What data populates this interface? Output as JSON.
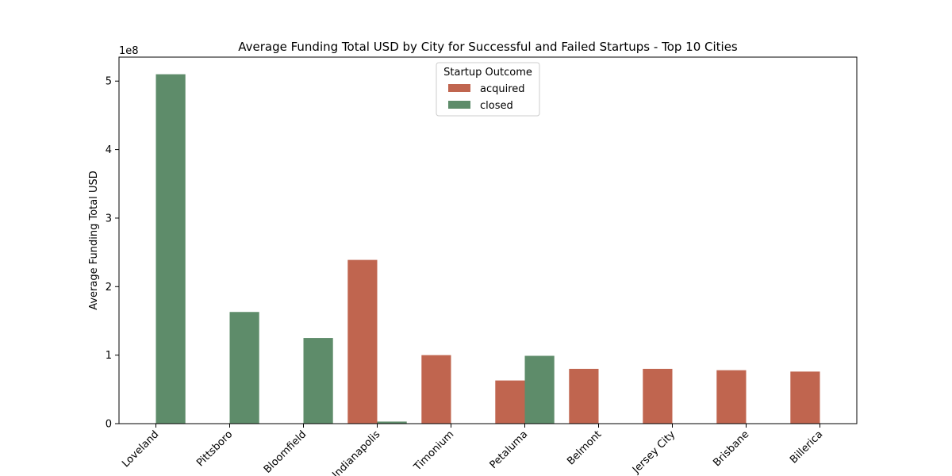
{
  "chart_data": {
    "type": "bar",
    "title": "Average Funding Total USD by City for Successful and Failed Startups - Top 10 Cities",
    "xlabel": "",
    "ylabel": "Average Funding Total USD",
    "y_offset_label": "1e8",
    "y_scale": 100000000,
    "ylim": [
      0,
      535000000
    ],
    "y_ticks": [
      0,
      100000000,
      200000000,
      300000000,
      400000000,
      500000000
    ],
    "y_tick_labels": [
      "0",
      "1",
      "2",
      "3",
      "4",
      "5"
    ],
    "categories": [
      "Loveland",
      "Pittsboro",
      "Bloomfield",
      "Indianapolis",
      "Timonium",
      "Petaluma",
      "Belmont",
      "Jersey City",
      "Brisbane",
      "Billerica"
    ],
    "series": [
      {
        "name": "acquired",
        "color": "#c0654f",
        "values": [
          null,
          null,
          null,
          239000000,
          100000000,
          63000000,
          80000000,
          80000000,
          78000000,
          76000000
        ]
      },
      {
        "name": "closed",
        "color": "#5e8c6a",
        "values": [
          510000000,
          163000000,
          125000000,
          3000000,
          null,
          99000000,
          null,
          null,
          null,
          null
        ]
      }
    ],
    "legend": {
      "title": "Startup Outcome",
      "position": "upper-center",
      "entries": [
        {
          "label": "acquired",
          "color": "#c0654f"
        },
        {
          "label": "closed",
          "color": "#5e8c6a"
        }
      ]
    },
    "grid": false
  }
}
